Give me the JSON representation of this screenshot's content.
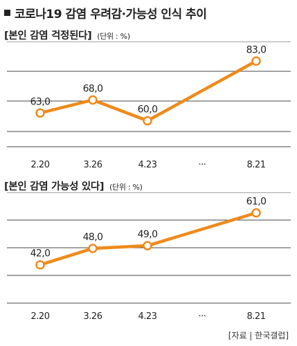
{
  "title": "코로나19 감염 우려감·가능성 인식 추이",
  "source": "[자료 | 한국갤럽]",
  "chart_data": [
    {
      "type": "line",
      "title": "[본인 감염 걱정된다]",
      "unit": "(단위 : %)",
      "categories": [
        "2.20",
        "3.26",
        "4.23",
        "···",
        "8.21"
      ],
      "values": [
        63.0,
        68.0,
        60.0,
        null,
        83.0
      ],
      "labels": [
        "63,0",
        "68,0",
        "60,0",
        null,
        "83,0"
      ],
      "ylim": [
        50,
        90
      ],
      "grid": true,
      "color": "#ef8a1b"
    },
    {
      "type": "line",
      "title": "[본인 감염 가능성 있다]",
      "unit": "(단위 : %)",
      "categories": [
        "2.20",
        "3.26",
        "4.23",
        "···",
        "8.21"
      ],
      "values": [
        42.0,
        48.0,
        49.0,
        null,
        61.0
      ],
      "labels": [
        "42,0",
        "48,0",
        "49,0",
        null,
        "61,0"
      ],
      "ylim": [
        28,
        68
      ],
      "grid": true,
      "color": "#ef8a1b"
    }
  ]
}
